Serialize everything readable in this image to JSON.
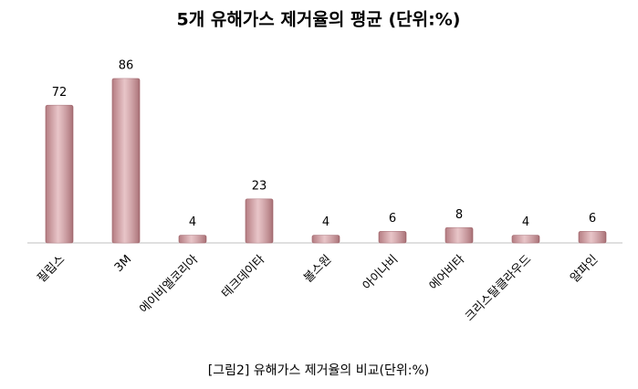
{
  "chart_data": {
    "type": "bar",
    "title": "5개 유해가스 제거율의 평균 (단위:%)",
    "categories": [
      "필립스",
      "3M",
      "에이비엘코리아",
      "테크데이타",
      "볼스원",
      "아이나비",
      "에어비타",
      "크리스탈클라우드",
      "알파인"
    ],
    "values": [
      72,
      86,
      4,
      23,
      4,
      6,
      8,
      4,
      6
    ],
    "color": "#dca6ab",
    "caption": "[그림2]  유해가스  제거율의  비교(단위:%)"
  }
}
